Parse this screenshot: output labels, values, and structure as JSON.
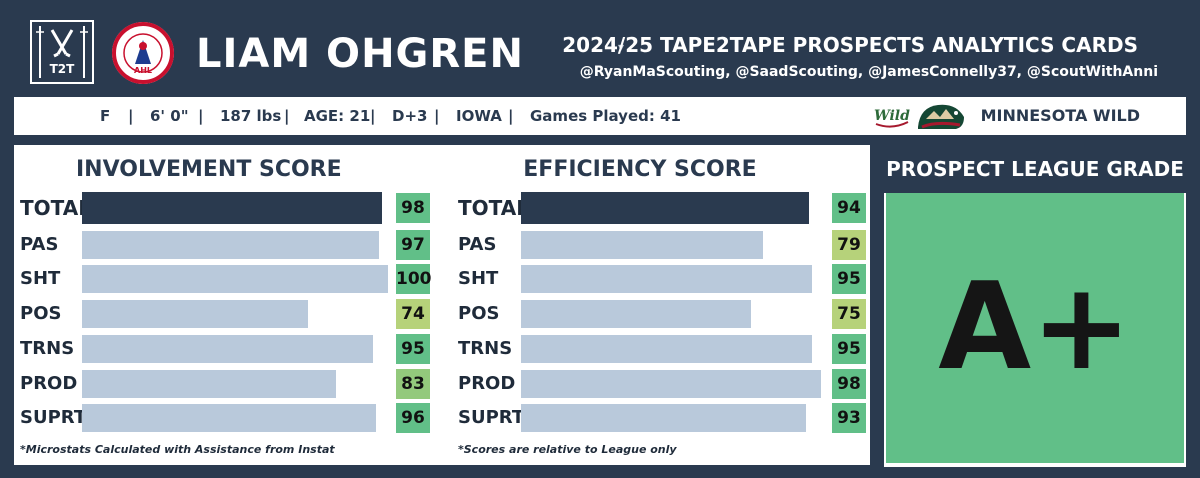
{
  "header": {
    "logo_left_text": "T2T",
    "logo_right_text": "AHL",
    "player_name": "LIAM OHGREN",
    "title": "2024/25 TAPE2TAPE PROSPECTS ANALYTICS CARDS",
    "credits": "@RyanMaScouting, @SaadScouting, @JamesConnelly37, @ScoutWithAnni"
  },
  "info_bar": {
    "position": "F",
    "height": "6' 0\"",
    "weight": "187 lbs",
    "age": "AGE: 21",
    "draft": "D+3",
    "team_short": "IOWA",
    "games": "Games Played: 41",
    "separator": "|",
    "wordmark": "Wild",
    "team_name": "MINNESOTA WILD"
  },
  "colors": {
    "background": "#2a3a4f",
    "total_bar": "#2a3a4f",
    "bar": "#b9c9db",
    "grade_fill": "#61bf88"
  },
  "chart_data": [
    {
      "type": "bar",
      "title": "INVOLVEMENT SCORE",
      "categories": [
        "TOTAL",
        "PAS",
        "SHT",
        "POS",
        "TRNS",
        "PROD",
        "SUPRT"
      ],
      "values": [
        98,
        97,
        100,
        74,
        95,
        83,
        96
      ],
      "ylim": [
        0,
        100
      ],
      "grid": false,
      "footnote": "*Microstats Calculated with Assistance from Instat"
    },
    {
      "type": "bar",
      "title": "EFFICIENCY SCORE",
      "categories": [
        "TOTAL",
        "PAS",
        "SHT",
        "POS",
        "TRNS",
        "PROD",
        "SUPRT"
      ],
      "values": [
        94,
        79,
        95,
        75,
        95,
        98,
        93
      ],
      "ylim": [
        0,
        100
      ],
      "grid": false,
      "footnote": "*Scores are relative to League only"
    }
  ],
  "grade": {
    "title": "PROSPECT LEAGUE GRADE",
    "value": "A+"
  }
}
